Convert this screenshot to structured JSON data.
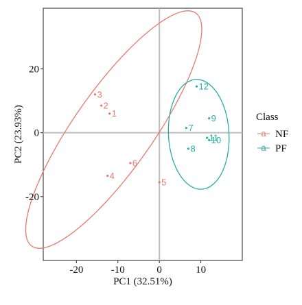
{
  "chart_data": {
    "type": "scatter",
    "xlabel": "PC1 (32.51%)",
    "ylabel": "PC2 (23.93%)",
    "xlim": [
      -28,
      20
    ],
    "ylim": [
      -40,
      39
    ],
    "x_ticks": [
      -20,
      -10,
      0,
      10
    ],
    "y_ticks": [
      -20,
      0,
      20
    ],
    "x_tick_labels": [
      "-20",
      "-10",
      "0",
      "10"
    ],
    "y_tick_labels": [
      "-20",
      "0",
      "20"
    ],
    "reference_lines": {
      "x": 0,
      "y": 0
    },
    "legend": {
      "title": "Class",
      "placement": "right"
    },
    "series": [
      {
        "name": "NF",
        "color": "#E8786E",
        "points": [
          {
            "label": "1",
            "x": -12,
            "y": 6
          },
          {
            "label": "2",
            "x": -14,
            "y": 8.5
          },
          {
            "label": "3",
            "x": -15.5,
            "y": 12
          },
          {
            "label": "4",
            "x": -12.5,
            "y": -13.5
          },
          {
            "label": "5",
            "x": 0,
            "y": -15.5
          },
          {
            "label": "6",
            "x": -7,
            "y": -9.5
          }
        ],
        "ellipse": {
          "center": [
            -11,
            1
          ],
          "semi_major": 41.6,
          "semi_minor": 10.2,
          "angle_deg": 62.5
        }
      },
      {
        "name": "PF",
        "color": "#2AADA3",
        "points": [
          {
            "label": "7",
            "x": 6.5,
            "y": 1.5
          },
          {
            "label": "8",
            "x": 7,
            "y": -5
          },
          {
            "label": "9",
            "x": 12,
            "y": 4.5
          },
          {
            "label": "10",
            "x": 12,
            "y": -2.3
          },
          {
            "label": "11",
            "x": 11.5,
            "y": -1.6
          },
          {
            "label": "12",
            "x": 9,
            "y": 14.5
          }
        ],
        "ellipse": {
          "center": [
            9.5,
            -0.5
          ],
          "semi_major": 17.2,
          "semi_minor": 7.3,
          "angle_deg": 92
        }
      }
    ]
  }
}
